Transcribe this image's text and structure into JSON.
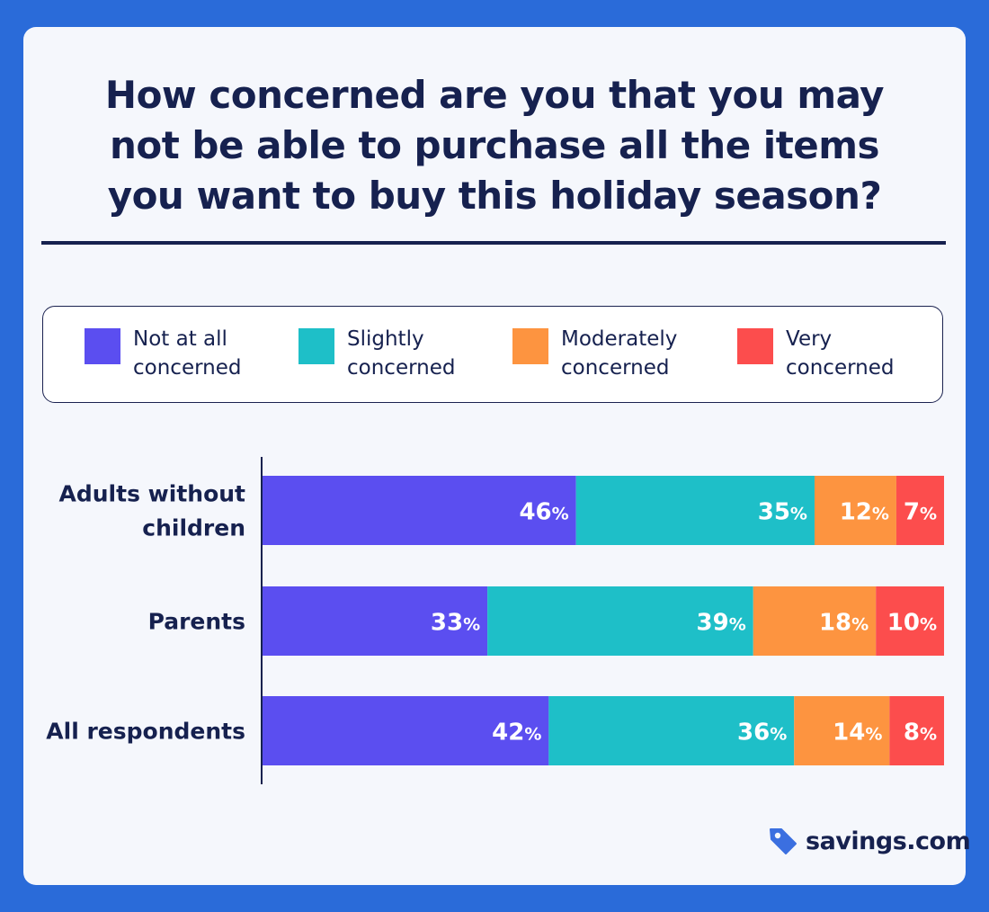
{
  "title_lines": [
    "How concerned are you that you may",
    "not be able to purchase all the items",
    "you want to buy this holiday season?"
  ],
  "brand": {
    "name": "savings.com",
    "icon": "price-tag-icon",
    "icon_color": "#3b6fe0"
  },
  "colors": {
    "background": "#2a6bd9",
    "card": "#f5f7fc",
    "text": "#16214f"
  },
  "chart_data": {
    "type": "bar",
    "orientation": "horizontal",
    "stacked": true,
    "categories": [
      "Adults without children",
      "Parents",
      "All respondents"
    ],
    "series": [
      {
        "name": "Not at all concerned",
        "color": "#5b4ef0",
        "values": [
          46,
          33,
          42
        ]
      },
      {
        "name": "Slightly concerned",
        "color": "#1ebfc8",
        "values": [
          35,
          39,
          36
        ]
      },
      {
        "name": "Moderately concerned",
        "color": "#fd9440",
        "values": [
          12,
          18,
          14
        ]
      },
      {
        "name": "Very concerned",
        "color": "#fc4d4d",
        "values": [
          7,
          10,
          8
        ]
      }
    ],
    "value_suffix": "%",
    "xlim": [
      0,
      100
    ],
    "legend_position": "top",
    "grid": false
  }
}
